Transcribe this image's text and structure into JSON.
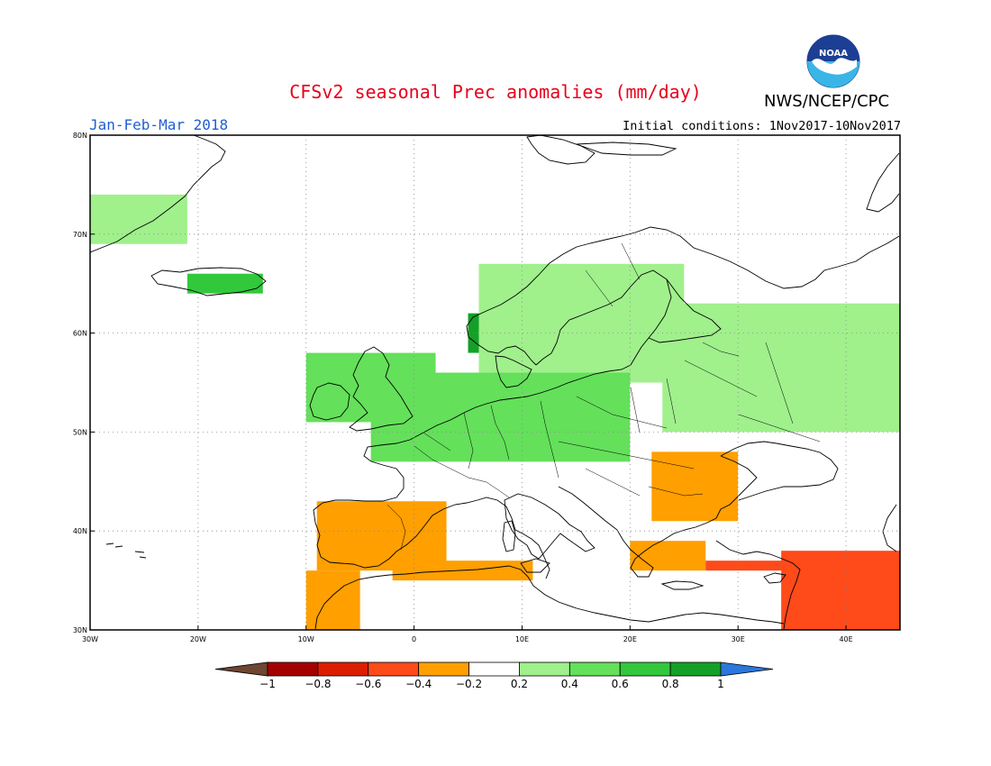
{
  "header": {
    "title": "CFSv2 seasonal Prec anomalies (mm/day)",
    "org": "NWS/NCEP/CPC",
    "period": "Jan-Feb-Mar 2018",
    "initial_conditions": "Initial conditions: 1Nov2017-10Nov2017",
    "logo_text": "NOAA"
  },
  "map": {
    "lon_range": [
      -30,
      45
    ],
    "lat_range": [
      30,
      80
    ],
    "x_ticks": [
      "30W",
      "20W",
      "10W",
      "0",
      "10E",
      "20E",
      "30E",
      "40E"
    ],
    "y_ticks": [
      "30N",
      "40N",
      "50N",
      "60N",
      "70N",
      "80N"
    ],
    "grid": "dotted"
  },
  "colorbar": {
    "labels": [
      "-1",
      "-0.8",
      "-0.6",
      "-0.4",
      "-0.2",
      "0.2",
      "0.4",
      "0.6",
      "0.8",
      "1"
    ],
    "colors": {
      "lt_-1": "#6e4632",
      "-1_-0.8": "#a50000",
      "-0.8_-0.6": "#dc1e00",
      "-0.6_-0.4": "#ff4a1a",
      "-0.4_-0.2": "#ff9f00",
      "-0.2_0.2": "#ffffff",
      "0.2_0.4": "#a0f08c",
      "0.4_0.6": "#64e05a",
      "0.6_0.8": "#32c83c",
      "0.8_1": "#14a028",
      "gt_1": "#2a78dc"
    }
  },
  "chart_data": {
    "type": "heatmap",
    "title": "CFSv2 seasonal Prec anomalies (mm/day)",
    "region": "Europe",
    "period": "Jan-Feb-Mar 2018",
    "units": "mm/day",
    "patches": [
      {
        "region": "East Greenland coast",
        "lon": [
          -30,
          -21
        ],
        "lat": [
          69,
          74
        ],
        "anomaly": 0.35
      },
      {
        "region": "Iceland",
        "lon": [
          -21,
          -14
        ],
        "lat": [
          64,
          66
        ],
        "anomaly": 0.6
      },
      {
        "region": "Western Norway",
        "lon": [
          5,
          9
        ],
        "lat": [
          58,
          62
        ],
        "anomaly": 0.8
      },
      {
        "region": "Scandinavia",
        "lon": [
          6,
          25
        ],
        "lat": [
          55,
          67
        ],
        "anomaly": 0.3
      },
      {
        "region": "Ireland and Britain",
        "lon": [
          -10,
          2
        ],
        "lat": [
          51,
          58
        ],
        "anomaly": 0.4
      },
      {
        "region": "Central Europe",
        "lon": [
          -4,
          20
        ],
        "lat": [
          47,
          56
        ],
        "anomaly": 0.4
      },
      {
        "region": "Western Russia",
        "lon": [
          23,
          45
        ],
        "lat": [
          50,
          63
        ],
        "anomaly": 0.3
      },
      {
        "region": "Iberia",
        "lon": [
          -9,
          3
        ],
        "lat": [
          36,
          43
        ],
        "anomaly": -0.3
      },
      {
        "region": "Morocco",
        "lon": [
          -10,
          -5
        ],
        "lat": [
          30,
          36
        ],
        "anomaly": -0.4
      },
      {
        "region": "North Africa coast",
        "lon": [
          -2,
          11
        ],
        "lat": [
          35,
          37
        ],
        "anomaly": -0.3
      },
      {
        "region": "Romania and Balkans",
        "lon": [
          22,
          30
        ],
        "lat": [
          41,
          48
        ],
        "anomaly": -0.3
      },
      {
        "region": "Greece and Aegean",
        "lon": [
          20,
          27
        ],
        "lat": [
          36,
          39
        ],
        "anomaly": -0.3
      },
      {
        "region": "Southern Turkey",
        "lon": [
          27,
          35
        ],
        "lat": [
          36,
          37
        ],
        "anomaly": -0.55
      },
      {
        "region": "Levant and Middle East",
        "lon": [
          34,
          45
        ],
        "lat": [
          30,
          38
        ],
        "anomaly": -0.5
      }
    ]
  }
}
